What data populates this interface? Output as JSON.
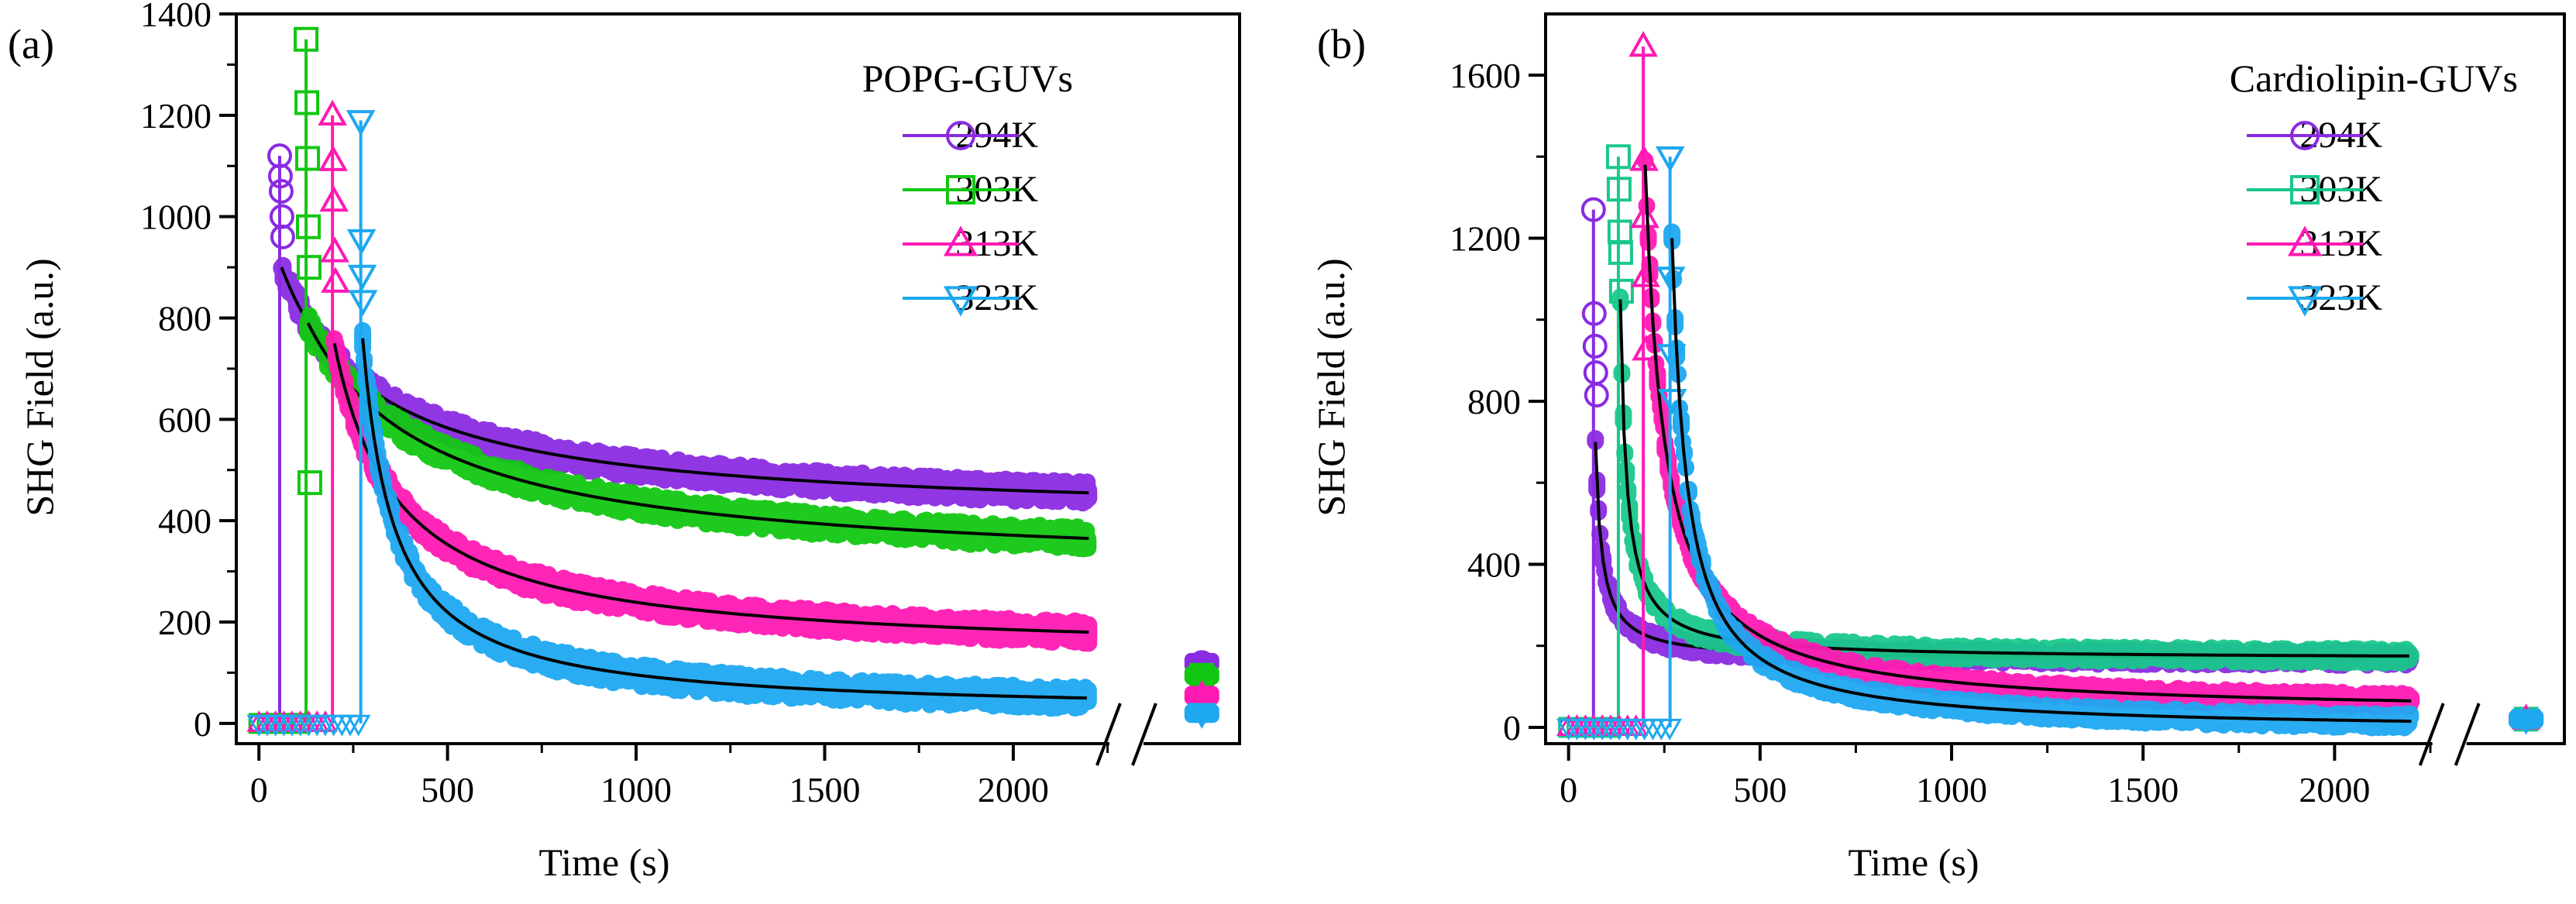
{
  "chart_data": [
    {
      "type": "scatter",
      "panel_label": "(a)",
      "legend_title": "POPG-GUVs",
      "xlabel": "Time (s)",
      "ylabel": "SHG Field (a.u.)",
      "xlim": [
        -60,
        2600
      ],
      "ylim": [
        -40,
        1400
      ],
      "xticks": [
        0,
        500,
        1000,
        1500,
        2000
      ],
      "xtick_labels": [
        "0",
        "500",
        "1000",
        "1500",
        "2000"
      ],
      "yticks": [
        0,
        200,
        400,
        600,
        800,
        1000,
        1200,
        1400
      ],
      "ytick_labels": [
        "0",
        "200",
        "400",
        "600",
        "800",
        "1000",
        "1200",
        "1400"
      ],
      "axis_break_x": 2300,
      "series": [
        {
          "name": "294K",
          "marker": "circle",
          "color": "#8a2be2",
          "baseline": 0,
          "injection_time": 55,
          "spike_values": [
            1120,
            1080,
            1050,
            1000,
            960
          ],
          "decay_start": 60,
          "decay_end": 2200,
          "initial": 900,
          "final": 455,
          "after_break_value": 120
        },
        {
          "name": "303K",
          "marker": "square",
          "color": "#12c712",
          "baseline": 0,
          "injection_time": 125,
          "spike_values": [
            1350,
            1225,
            1115,
            980,
            900,
            475
          ],
          "decay_start": 130,
          "decay_end": 2200,
          "initial": 790,
          "final": 365,
          "after_break_value": 95
        },
        {
          "name": "313K",
          "marker": "triangle-up",
          "color": "#ff1ab3",
          "baseline": 0,
          "injection_time": 195,
          "spike_values": [
            1200,
            1110,
            1030,
            930,
            870
          ],
          "decay_start": 200,
          "decay_end": 2200,
          "initial": 750,
          "final": 180,
          "after_break_value": 55
        },
        {
          "name": "323K",
          "marker": "triangle-down",
          "color": "#1ea8f0",
          "baseline": 0,
          "injection_time": 270,
          "spike_values": [
            1190,
            955,
            885,
            835
          ],
          "decay_start": 275,
          "decay_end": 2200,
          "initial": 760,
          "final": 50,
          "after_break_value": 20
        }
      ]
    },
    {
      "type": "scatter",
      "panel_label": "(b)",
      "legend_title": "Cardiolipin-GUVs",
      "xlabel": "Time (s)",
      "ylabel": "SHG Field (a.u.)",
      "xlim": [
        -60,
        2600
      ],
      "ylim": [
        -40,
        1750
      ],
      "xticks": [
        0,
        500,
        1000,
        1500,
        2000
      ],
      "xtick_labels": [
        "0",
        "500",
        "1000",
        "1500",
        "2000"
      ],
      "yticks": [
        0,
        400,
        800,
        1200,
        1600
      ],
      "ytick_labels": [
        "0",
        "400",
        "800",
        "1200",
        "1600"
      ],
      "axis_break_x": 2300,
      "series": [
        {
          "name": "294K",
          "marker": "circle",
          "color": "#8a2be2",
          "baseline": 0,
          "injection_time": 65,
          "spike_values": [
            1270,
            1015,
            935,
            870,
            815
          ],
          "decay_start": 70,
          "decay_end": 2200,
          "initial": 700,
          "final": 170,
          "after_break_value": 20
        },
        {
          "name": "303K",
          "marker": "square",
          "color": "#19c88a",
          "baseline": 0,
          "injection_time": 130,
          "spike_values": [
            1400,
            1320,
            1215,
            1165,
            1070
          ],
          "decay_start": 135,
          "decay_end": 2200,
          "initial": 1050,
          "final": 175,
          "after_break_value": 20
        },
        {
          "name": "313K",
          "marker": "triangle-up",
          "color": "#ff1ab3",
          "baseline": 0,
          "injection_time": 195,
          "spike_values": [
            1670,
            1390,
            1250,
            1105,
            925
          ],
          "decay_start": 200,
          "decay_end": 2200,
          "initial": 1380,
          "final": 65,
          "after_break_value": 20
        },
        {
          "name": "323K",
          "marker": "triangle-down",
          "color": "#1ea8f0",
          "baseline": 0,
          "injection_time": 265,
          "spike_values": [
            1400,
            1105,
            915,
            805
          ],
          "decay_start": 270,
          "decay_end": 2200,
          "initial": 1200,
          "final": 15,
          "after_break_value": 20
        }
      ]
    }
  ]
}
